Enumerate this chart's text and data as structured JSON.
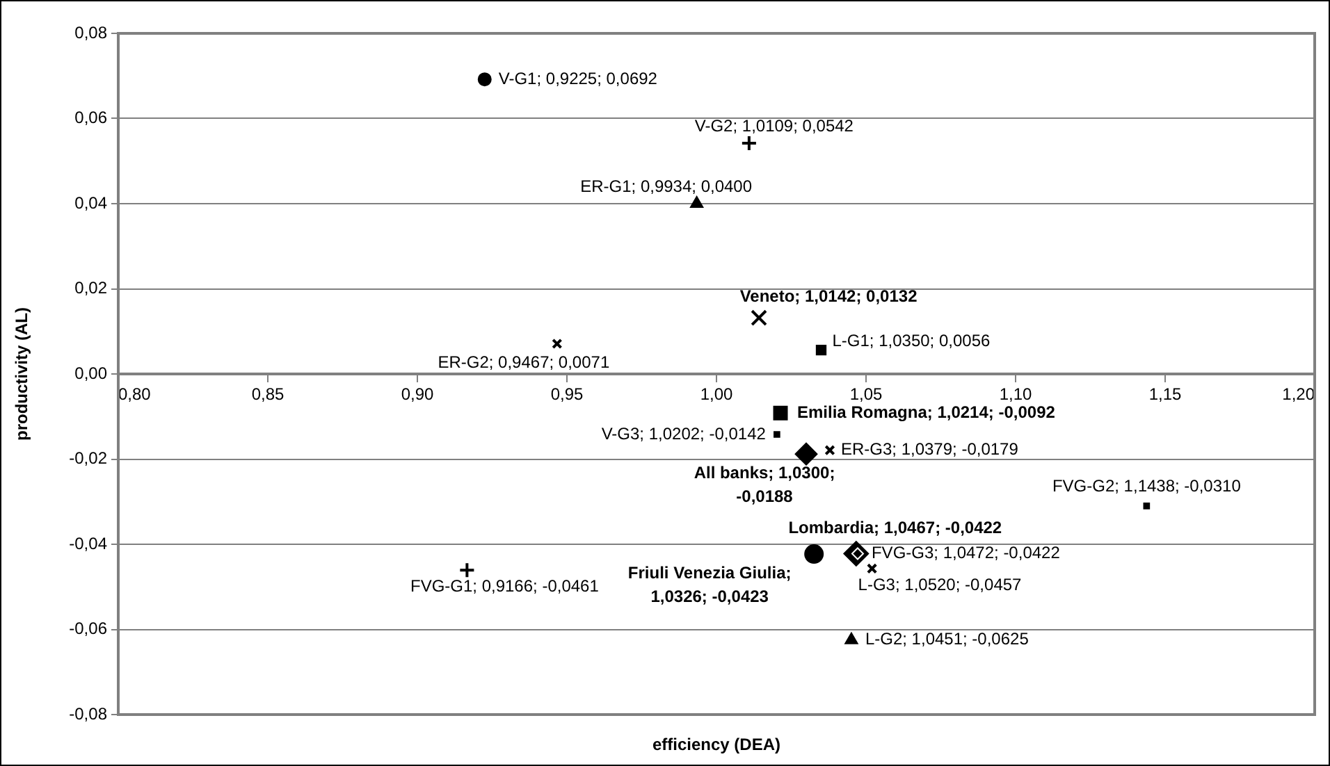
{
  "chart_data": {
    "type": "scatter",
    "xlabel": "efficiency (DEA)",
    "ylabel": "productivity (AL)",
    "xlim": [
      0.8,
      1.2
    ],
    "xticks": [
      {
        "value": 0.8,
        "label": "0,80"
      },
      {
        "value": 0.85,
        "label": "0,85"
      },
      {
        "value": 0.9,
        "label": "0,90"
      },
      {
        "value": 0.95,
        "label": "0,95"
      },
      {
        "value": 1.0,
        "label": "1,00"
      },
      {
        "value": 1.05,
        "label": "1,05"
      },
      {
        "value": 1.1,
        "label": "1,10"
      },
      {
        "value": 1.15,
        "label": "1,15"
      },
      {
        "value": 1.2,
        "label": "1,20"
      }
    ],
    "ylim": [
      -0.08,
      0.08
    ],
    "yticks": [
      {
        "value": -0.08,
        "label": "-0,08"
      },
      {
        "value": -0.06,
        "label": "-0,06"
      },
      {
        "value": -0.04,
        "label": "-0,04"
      },
      {
        "value": -0.02,
        "label": "-0,02"
      },
      {
        "value": 0,
        "label": "0,00"
      },
      {
        "value": 0.02,
        "label": "0,02"
      },
      {
        "value": 0.04,
        "label": "0,04"
      },
      {
        "value": 0.06,
        "label": "0,06"
      },
      {
        "value": 0.08,
        "label": "0,08"
      }
    ],
    "grid": "y",
    "legend": false,
    "series": [
      {
        "color": "#000000",
        "marker": "circle",
        "x": [
          0.9225
        ],
        "values": [
          0.0692
        ],
        "value_labels": [
          "V-G1; 0,9225; 0,0692"
        ]
      },
      {
        "color": "#000000",
        "marker": "cross",
        "x": [
          1.0109
        ],
        "values": [
          0.0542
        ],
        "value_labels": [
          "V-G2; 1,0109; 0,0542"
        ]
      },
      {
        "color": "#000000",
        "marker": "triangle",
        "x": [
          0.9934
        ],
        "values": [
          0.04
        ],
        "value_labels": [
          "ER-G1; 0,9934; 0,0400"
        ]
      },
      {
        "color": "#000000",
        "marker": "cross",
        "x": [
          1.0142
        ],
        "values": [
          0.0132
        ],
        "value_labels": [
          "Veneto; 1,0142; 0,0132"
        ]
      },
      {
        "color": "#000000",
        "marker": "square",
        "x": [
          1.035
        ],
        "values": [
          0.0056
        ],
        "value_labels": [
          "L-G1; 1,0350; 0,0056"
        ]
      },
      {
        "color": "#000000",
        "marker": "cross",
        "x": [
          0.9467
        ],
        "values": [
          0.0071
        ],
        "value_labels": [
          "ER-G2; 0,9467; 0,0071"
        ]
      },
      {
        "color": "#000000",
        "marker": "square",
        "x": [
          1.0214
        ],
        "values": [
          -0.0092
        ],
        "value_labels": [
          "Emilia Romagna; 1,0214; -0,0092"
        ]
      },
      {
        "color": "#000000",
        "marker": "square",
        "x": [
          1.0202
        ],
        "values": [
          -0.0142
        ],
        "value_labels": [
          "V-G3; 1,0202; -0,0142"
        ]
      },
      {
        "color": "#000000",
        "marker": "cross",
        "x": [
          1.0379
        ],
        "values": [
          -0.0179
        ],
        "value_labels": [
          "ER-G3; 1,0379; -0,0179"
        ]
      },
      {
        "color": "#000000",
        "marker": "diamond",
        "x": [
          1.03
        ],
        "values": [
          -0.0188
        ],
        "value_labels": [
          "All banks; 1,0300; -0,0188"
        ]
      },
      {
        "color": "#000000",
        "marker": "square",
        "x": [
          1.1438
        ],
        "values": [
          -0.031
        ],
        "value_labels": [
          "FVG-G2; 1,1438; -0,0310"
        ]
      },
      {
        "color": "#000000",
        "marker": "diamond",
        "x": [
          1.0467
        ],
        "values": [
          -0.0422
        ],
        "value_labels": [
          "Lombardia; 1,0467; -0,0422"
        ]
      },
      {
        "color": "#000000",
        "marker": "diamond",
        "x": [
          1.0472
        ],
        "values": [
          -0.0422
        ],
        "value_labels": [
          "FVG-G3; 1,0472; -0,0422"
        ]
      },
      {
        "color": "#000000",
        "marker": "circle",
        "x": [
          1.0326
        ],
        "values": [
          -0.0423
        ],
        "value_labels": [
          "Friuli Venezia Giulia; 1,0326; -0,0423"
        ]
      },
      {
        "color": "#000000",
        "marker": "cross",
        "x": [
          1.052
        ],
        "values": [
          -0.0457
        ],
        "value_labels": [
          "L-G3; 1,0520; -0,0457"
        ]
      },
      {
        "color": "#000000",
        "marker": "cross",
        "x": [
          0.9166
        ],
        "values": [
          -0.0461
        ],
        "value_labels": [
          "FVG-G1; 0,9166; -0,0461"
        ]
      },
      {
        "color": "#000000",
        "marker": "triangle",
        "x": [
          1.0451
        ],
        "values": [
          -0.0625
        ],
        "value_labels": [
          "L-G2; 1,0451; -0,0625"
        ]
      }
    ]
  }
}
